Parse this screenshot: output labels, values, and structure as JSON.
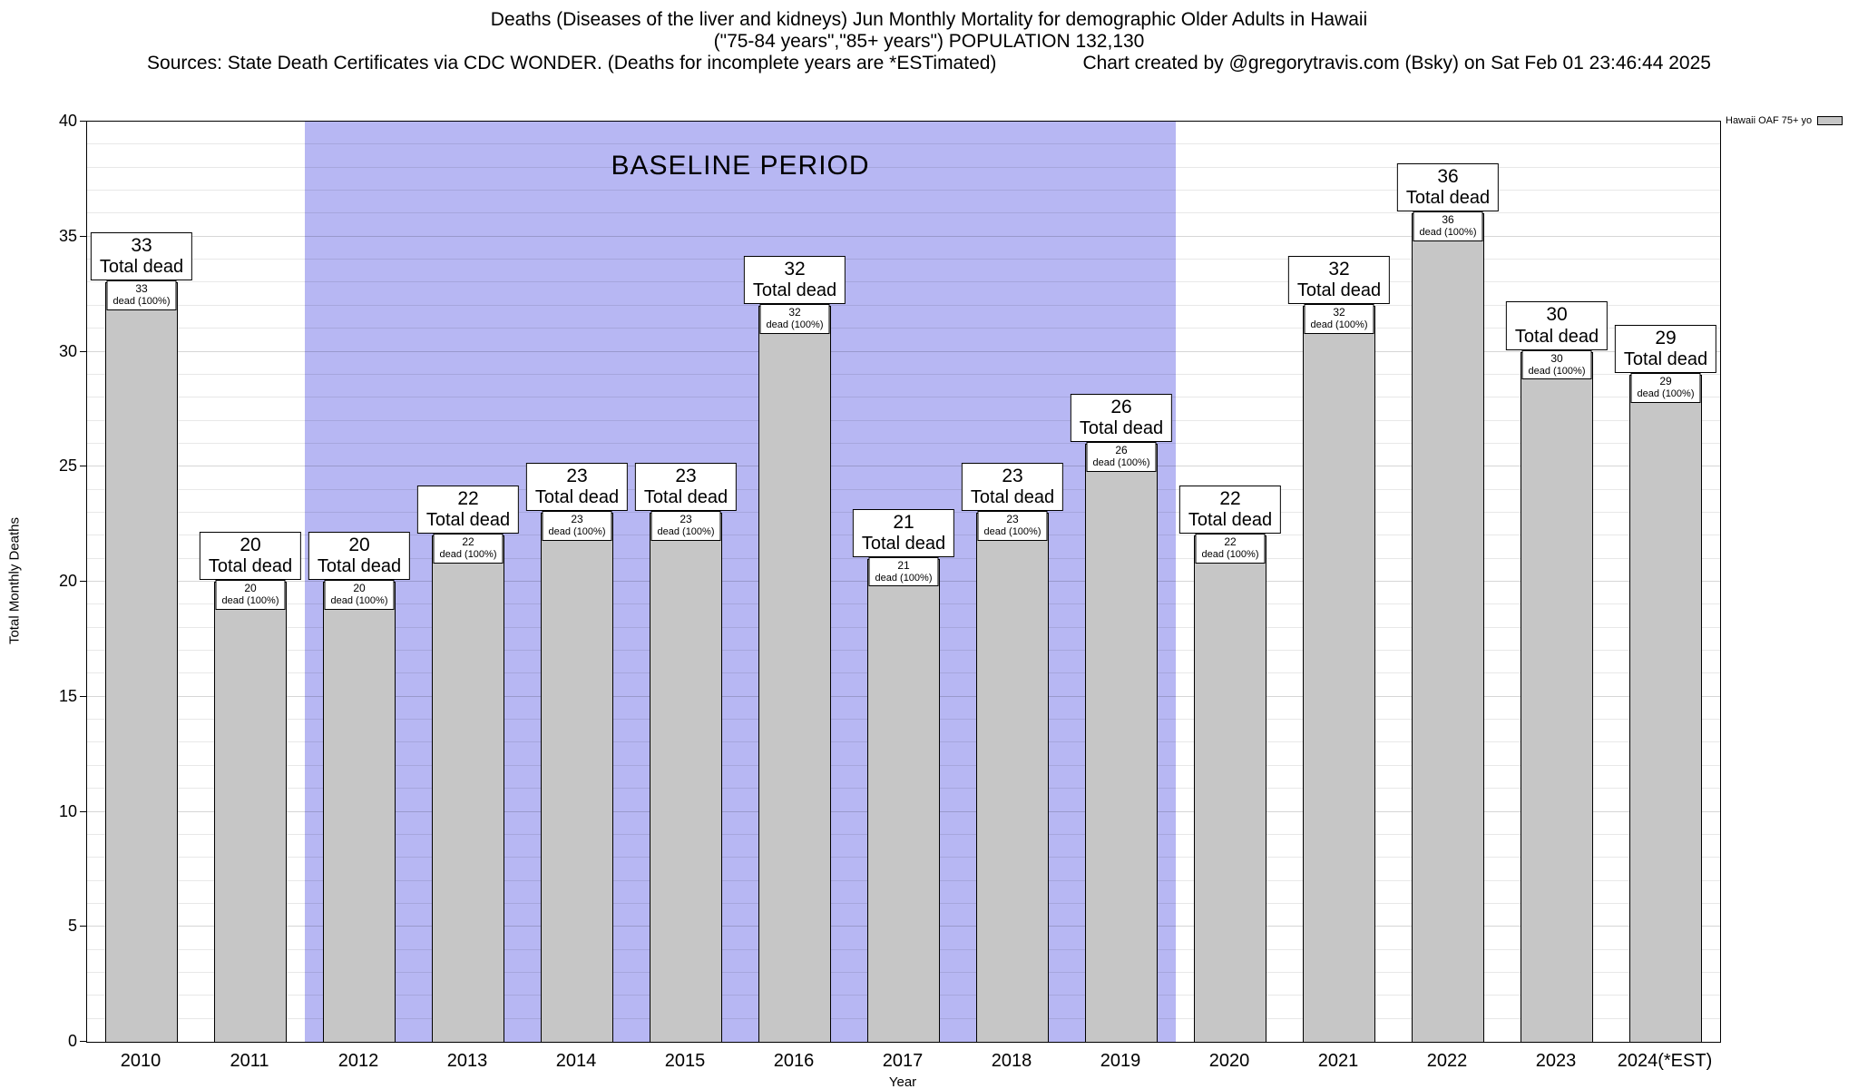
{
  "header": {
    "title_line1": "Deaths (Diseases of the liver and kidneys) Jun Monthly Mortality for demographic Older Adults in Hawaii",
    "title_line2": "(\"75-84 years\",\"85+ years\") POPULATION 132,130",
    "sources": "Sources: State Death Certificates via CDC WONDER. (Deaths for incomplete years are *ESTimated)",
    "credit": "Chart created by @gregorytravis.com (Bsky) on Sat Feb 01 23:46:44 2025"
  },
  "chart_data": {
    "type": "bar",
    "title": "Deaths (Diseases of the liver and kidneys) Jun Monthly Mortality for demographic Older Adults in Hawaii",
    "categories": [
      "2010",
      "2011",
      "2012",
      "2013",
      "2014",
      "2015",
      "2016",
      "2017",
      "2018",
      "2019",
      "2020",
      "2021",
      "2022",
      "2023",
      "2024(*EST)"
    ],
    "values": [
      33,
      20,
      20,
      22,
      23,
      23,
      32,
      21,
      23,
      26,
      22,
      32,
      36,
      30,
      29
    ],
    "ylabel": "Total Monthly Deaths",
    "xlabel": "Year",
    "ylim": [
      0,
      40
    ],
    "y_major_ticks": [
      0,
      5,
      10,
      15,
      20,
      25,
      30,
      35,
      40
    ],
    "minor_grid_step": 1,
    "grid": true,
    "legend": {
      "label": "Hawaii OAF 75+ yo",
      "position": "top-right",
      "swatch_color": "#c6c6c6"
    },
    "baseline_band": {
      "label": "BASELINE PERIOD",
      "start_category": "2012",
      "end_category": "2019",
      "color": "#b7b7f3"
    },
    "bar_color": "#c6c6c6",
    "labels": {
      "total_dead": "Total dead",
      "segment": "dead (100%)"
    }
  }
}
